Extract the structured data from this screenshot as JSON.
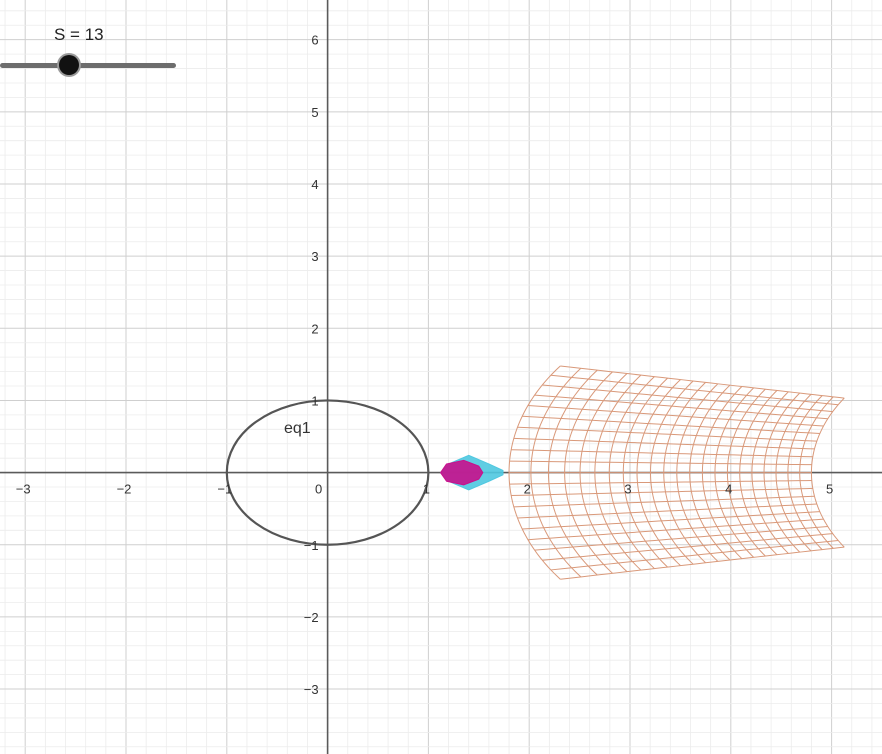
{
  "slider": {
    "name": "S",
    "value": 13,
    "label": "S = 13",
    "min": 0,
    "max": 50,
    "color": "#111111"
  },
  "graph": {
    "x_range": [
      -3.25,
      5.5
    ],
    "y_range": [
      -3.9,
      6.55
    ],
    "grid": true,
    "x_tick_labels": [
      "−3",
      "−2",
      "−1",
      "0",
      "1",
      "2",
      "3",
      "4",
      "5"
    ],
    "x_tick_values": [
      -3,
      -2,
      -1,
      0,
      1,
      2,
      3,
      4,
      5
    ],
    "y_tick_labels": [
      "−3",
      "−2",
      "−1",
      "1",
      "2",
      "3",
      "4",
      "5",
      "6"
    ],
    "y_tick_values": [
      -3,
      -2,
      -1,
      1,
      2,
      3,
      4,
      5,
      6
    ],
    "objects": {
      "eq1": {
        "label": "eq1",
        "type": "circle",
        "center": [
          0,
          0
        ],
        "radius": 1,
        "label_position": [
          -0.3,
          0.55
        ],
        "color": "#555555"
      },
      "warped_grid": {
        "type": "mesh",
        "color": "#d9997a",
        "inner_arc_center": [
          4.2,
          0
        ],
        "inner_arc_radius": 2.4,
        "outer_arc_center": [
          6.6,
          0
        ],
        "outer_arc_radius": 1.8,
        "inner_half_angle_deg": 38,
        "outer_half_angle_deg": 35,
        "rows": 20,
        "cols": 22
      },
      "cyan_shape": {
        "type": "polygon",
        "color": "#4fc8e0",
        "points": [
          [
            1.12,
            0
          ],
          [
            1.2,
            0.12
          ],
          [
            1.4,
            0.24
          ],
          [
            1.6,
            0.12
          ],
          [
            1.74,
            0.03
          ],
          [
            1.74,
            -0.03
          ],
          [
            1.6,
            -0.12
          ],
          [
            1.4,
            -0.24
          ],
          [
            1.2,
            -0.12
          ]
        ]
      },
      "magenta_shape": {
        "type": "polygon",
        "color": "#c8108c",
        "points": [
          [
            1.12,
            0
          ],
          [
            1.18,
            0.12
          ],
          [
            1.35,
            0.17
          ],
          [
            1.5,
            0.09
          ],
          [
            1.54,
            0
          ],
          [
            1.5,
            -0.09
          ],
          [
            1.35,
            -0.17
          ],
          [
            1.18,
            -0.12
          ]
        ]
      }
    }
  }
}
